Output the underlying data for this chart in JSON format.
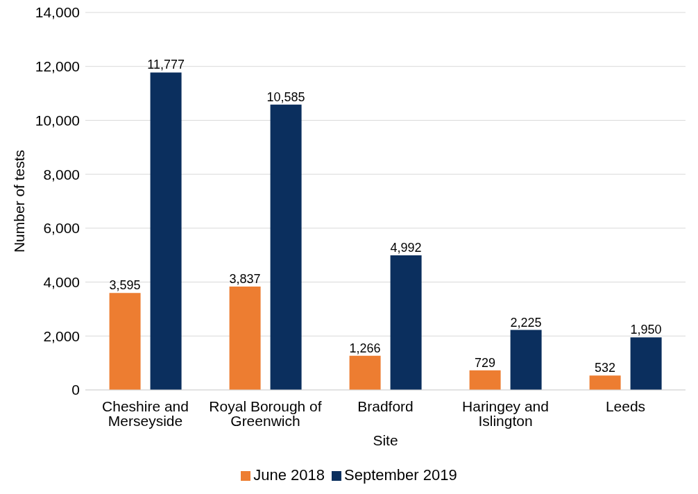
{
  "chart_data": {
    "type": "bar",
    "xlabel": "Site",
    "ylabel": "Number of tests",
    "categories": [
      "Cheshire and Merseyside",
      "Royal Borough of Greenwich",
      "Bradford",
      "Haringey and Islington",
      "Leeds"
    ],
    "series": [
      {
        "name": "June 2018",
        "color": "#ed7d31",
        "values": [
          3595,
          3837,
          1266,
          729,
          532
        ],
        "value_labels": [
          "3,595",
          "3,837",
          "1,266",
          "729",
          "532"
        ]
      },
      {
        "name": "September 2019",
        "color": "#0b2f5e",
        "values": [
          11777,
          10585,
          4992,
          2225,
          1950
        ],
        "value_labels": [
          "11,777",
          "10,585",
          "4,992",
          "2,225",
          "1,950"
        ]
      }
    ],
    "ylim": [
      0,
      14000
    ],
    "yticks": [
      0,
      {
        "value": 2000,
        "label": "2,000"
      },
      {
        "value": 4000,
        "label": "4,000"
      },
      {
        "value": 6000,
        "label": "6,000"
      },
      {
        "value": 8000,
        "label": "8,000"
      },
      {
        "value": 10000,
        "label": "10,000"
      },
      {
        "value": 12000,
        "label": "12,000"
      },
      {
        "value": 14000,
        "label": "14,000"
      }
    ],
    "grid": "y",
    "legend": "bottom"
  }
}
